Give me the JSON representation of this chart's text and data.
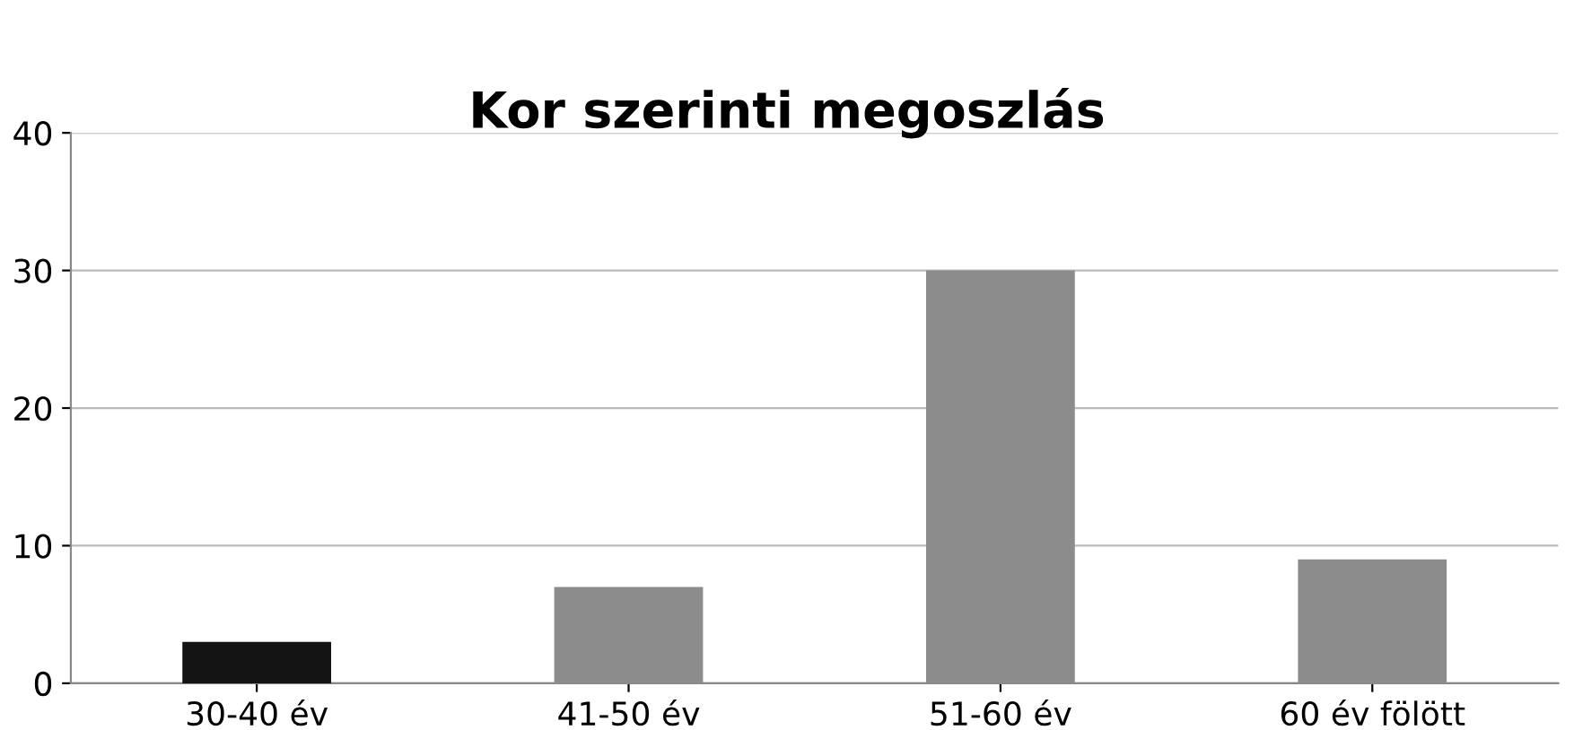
{
  "chart_data": {
    "type": "bar",
    "title": "Kor szerinti megoszlás",
    "categories": [
      "30-40 év",
      "41-50 év",
      "51-60 év",
      "60 év fölött"
    ],
    "values": [
      3,
      7,
      30,
      9
    ],
    "colors": [
      "#141414",
      "#8c8c8c",
      "#8c8c8c",
      "#8c8c8c"
    ],
    "ylim": [
      0,
      40
    ],
    "yticks": [
      0,
      10,
      20,
      30,
      40
    ],
    "grid": "y"
  }
}
